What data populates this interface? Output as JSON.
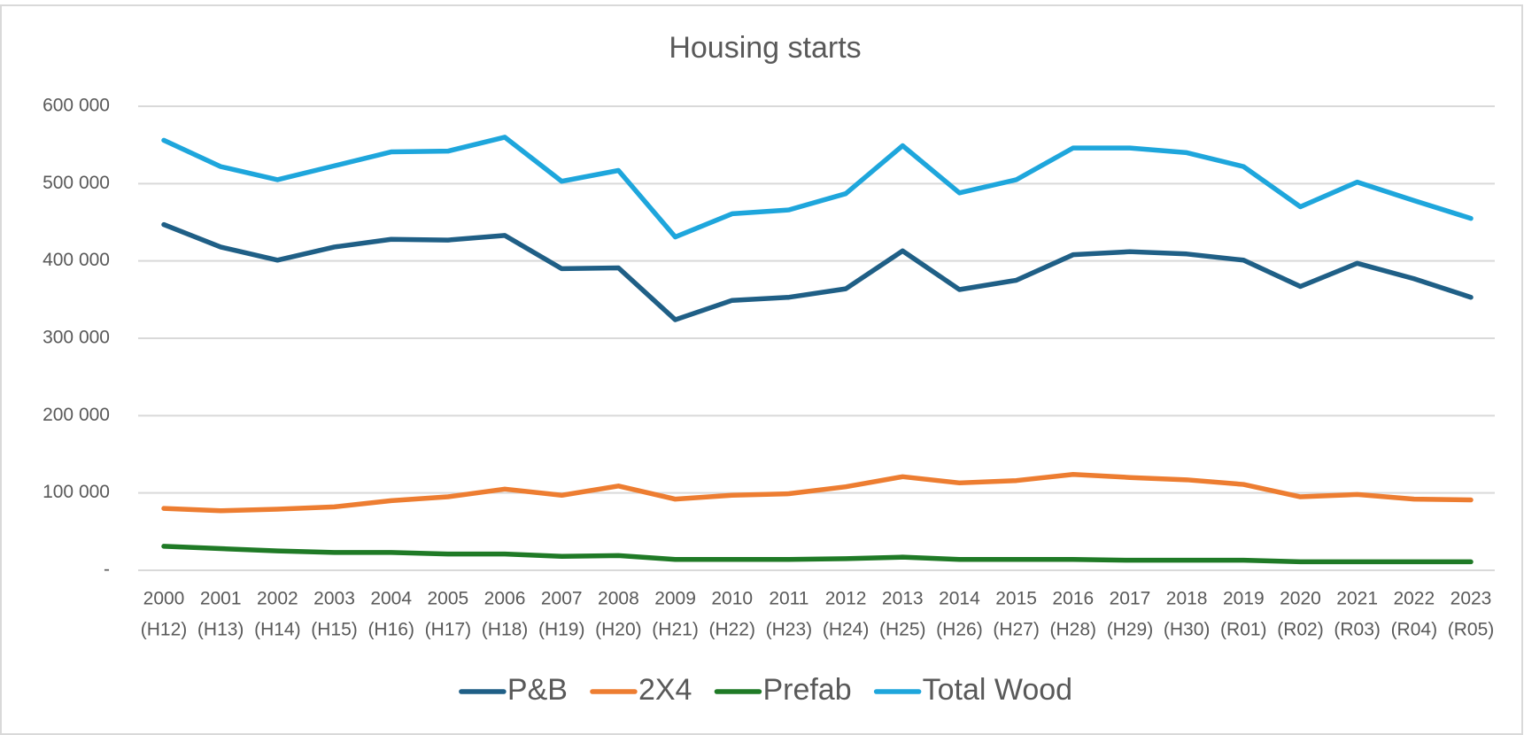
{
  "chart_data": {
    "type": "line",
    "title": "Housing starts",
    "categories": [
      [
        "2000",
        "(H12)"
      ],
      [
        "2001",
        "(H13)"
      ],
      [
        "2002",
        "(H14)"
      ],
      [
        "2003",
        "(H15)"
      ],
      [
        "2004",
        "(H16)"
      ],
      [
        "2005",
        "(H17)"
      ],
      [
        "2006",
        "(H18)"
      ],
      [
        "2007",
        "(H19)"
      ],
      [
        "2008",
        "(H20)"
      ],
      [
        "2009",
        "(H21)"
      ],
      [
        "2010",
        "(H22)"
      ],
      [
        "2011",
        "(H23)"
      ],
      [
        "2012",
        "(H24)"
      ],
      [
        "2013",
        "(H25)"
      ],
      [
        "2014",
        "(H26)"
      ],
      [
        "2015",
        "(H27)"
      ],
      [
        "2016",
        "(H28)"
      ],
      [
        "2017",
        "(H29)"
      ],
      [
        "2018",
        "(H30)"
      ],
      [
        "2019",
        "(R01)"
      ],
      [
        "2020",
        "(R02)"
      ],
      [
        "2021",
        "(R03)"
      ],
      [
        "2022",
        "(R04)"
      ],
      [
        "2023",
        "(R05)"
      ]
    ],
    "series": [
      {
        "name": "P&B",
        "color": "#1f5f86",
        "values": [
          447000,
          418000,
          401000,
          418000,
          428000,
          427000,
          433000,
          390000,
          391000,
          324000,
          349000,
          353000,
          364000,
          413000,
          363000,
          375000,
          408000,
          412000,
          409000,
          401000,
          367000,
          397000,
          377000,
          353000
        ]
      },
      {
        "name": "2X4",
        "color": "#ed7d31",
        "values": [
          80000,
          77000,
          79000,
          82000,
          90000,
          95000,
          105000,
          97000,
          109000,
          92000,
          97000,
          99000,
          108000,
          121000,
          113000,
          116000,
          124000,
          120000,
          117000,
          111000,
          95000,
          98000,
          92000,
          91000
        ]
      },
      {
        "name": "Prefab",
        "color": "#1f7a26",
        "values": [
          31000,
          28000,
          25000,
          23000,
          23000,
          21000,
          21000,
          18000,
          19000,
          14000,
          14000,
          14000,
          15000,
          17000,
          14000,
          14000,
          14000,
          13000,
          13000,
          13000,
          11000,
          11000,
          11000,
          11000
        ]
      },
      {
        "name": "Total Wood",
        "color": "#1ea6dc",
        "values": [
          556000,
          522000,
          505000,
          523000,
          541000,
          542000,
          560000,
          503000,
          517000,
          431000,
          461000,
          466000,
          487000,
          549000,
          488000,
          505000,
          546000,
          546000,
          540000,
          522000,
          470000,
          502000,
          478000,
          455000
        ]
      }
    ],
    "ylim": [
      0,
      600000
    ],
    "yticks": [
      {
        "value": 0,
        "label": "-"
      },
      {
        "value": 100000,
        "label": "100 000"
      },
      {
        "value": 200000,
        "label": "200 000"
      },
      {
        "value": 300000,
        "label": "300 000"
      },
      {
        "value": 400000,
        "label": "400 000"
      },
      {
        "value": 500000,
        "label": "500 000"
      },
      {
        "value": 600000,
        "label": "600 000"
      }
    ],
    "grid": true,
    "legend": "bottom"
  }
}
